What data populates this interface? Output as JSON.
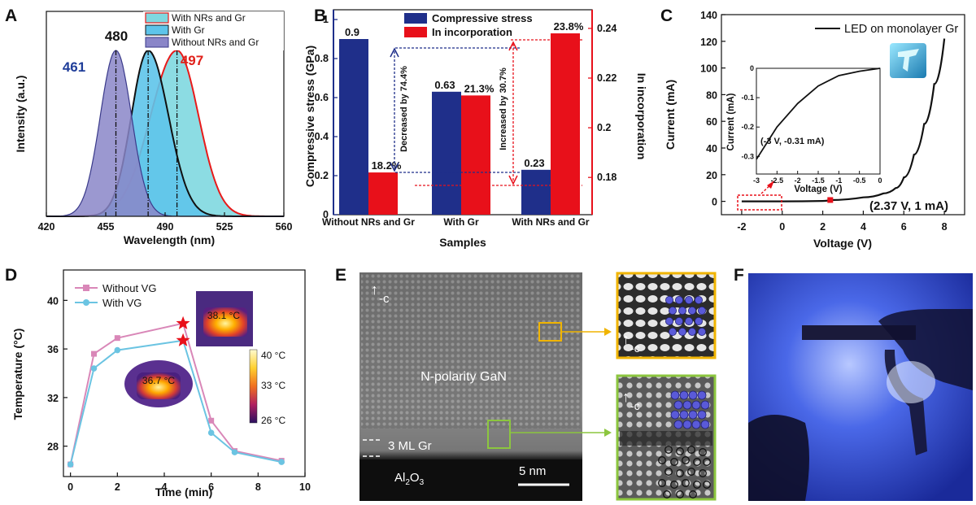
{
  "panels": {
    "a": "A",
    "b": "B",
    "c": "C",
    "d": "D",
    "e": "E",
    "f": "F"
  },
  "colors": {
    "navy": "#1f2f8a",
    "red": "#e8101a",
    "blue_peak": "#1f3d99",
    "red_peak": "#e0201a",
    "purple_fill": "#8a86c8",
    "cyan_fill": "#5ec4ea",
    "teal_fill": "#7fd8e0",
    "curve_red": "#e81a1a",
    "pink_line": "#d987b8",
    "cyan_line": "#6bc4e2"
  },
  "chart_data": [
    {
      "id": "A",
      "type": "line",
      "xlabel": "Wavelength (nm)",
      "ylabel": "Intensity (a.u.)",
      "xticks": [
        "420",
        "455",
        "490",
        "525",
        "560"
      ],
      "xlim": [
        420,
        560
      ],
      "legend": [
        "With NRs and Gr",
        "With Gr",
        "Without NRs and Gr"
      ],
      "peaks": [
        {
          "label": "461",
          "x": 461,
          "color": "#1f3d99"
        },
        {
          "label": "480",
          "x": 480,
          "color": "#111111"
        },
        {
          "label": "497",
          "x": 497,
          "color": "#e0201a"
        }
      ],
      "series": [
        {
          "name": "Without NRs and Gr",
          "peak": 461,
          "width_left": 13,
          "width_right": 13
        },
        {
          "name": "With Gr",
          "peak": 480,
          "width_left": 14,
          "width_right": 17
        },
        {
          "name": "With NRs and Gr",
          "peak": 497,
          "width_left": 22,
          "width_right": 18
        }
      ]
    },
    {
      "id": "B",
      "type": "bar",
      "xlabel": "Samples",
      "ylabel": "Compressive stress (GPa)",
      "ylabel2": "In incorporation",
      "categories": [
        "Without NRs and Gr",
        "With Gr",
        "With NRs and Gr"
      ],
      "ylim": [
        0,
        1.05
      ],
      "yticks": [
        "0",
        "0.2",
        "0.4",
        "0.6",
        "0.8",
        "1"
      ],
      "ylim2": [
        0.165,
        0.2475
      ],
      "yticks2": [
        "0.18",
        "0.2",
        "0.22",
        "0.24"
      ],
      "legend": [
        "Compressive stress",
        "In incorporation"
      ],
      "series": [
        {
          "name": "Compressive stress",
          "values": [
            0.9,
            0.63,
            0.23
          ],
          "labels": [
            "0.9",
            "0.63",
            "0.23"
          ]
        },
        {
          "name": "In incorporation",
          "values": [
            0.182,
            0.213,
            0.238
          ],
          "labels": [
            "18.2%",
            "21.3%",
            "23.8%"
          ]
        }
      ],
      "annotations": [
        "Decreased by 74.4%",
        "Increased by 30.7%"
      ]
    },
    {
      "id": "C",
      "type": "line",
      "xlabel": "Voltage (V)",
      "ylabel": "Current (mA)",
      "xticks": [
        "-2",
        "0",
        "2",
        "4",
        "6",
        "8"
      ],
      "xlim": [
        -3,
        9
      ],
      "yticks": [
        "0",
        "20",
        "40",
        "60",
        "80",
        "100",
        "120",
        "140"
      ],
      "ylim": [
        -10,
        140
      ],
      "legend": [
        "LED on monolayer Gr"
      ],
      "series": [
        {
          "name": "LED on monolayer Gr",
          "x": [
            -2,
            0,
            2,
            2.37,
            4,
            5,
            5.6,
            6,
            6.5,
            7,
            7.5,
            8
          ],
          "y": [
            0,
            0,
            0.3,
            1,
            3,
            6,
            10,
            18,
            35,
            58,
            88,
            122
          ]
        }
      ],
      "point_label": "(2.37 V, 1 mA)",
      "inset": {
        "xlabel": "Voltage (V)",
        "ylabel": "Current (mA)",
        "xticks": [
          "-3",
          "-2.5",
          "-2",
          "-1.5",
          "-1",
          "-0.5",
          "0"
        ],
        "yticks": [
          "0",
          "-0.1",
          "-0.2",
          "-0.3"
        ],
        "series": [
          {
            "x": [
              -3,
              -2.5,
              -2,
              -1.5,
              -1,
              -0.5,
              0
            ],
            "y": [
              -0.31,
              -0.2,
              -0.12,
              -0.06,
              -0.025,
              -0.01,
              0
            ]
          }
        ],
        "label": "(-3 V, -0.31 mA)"
      }
    },
    {
      "id": "D",
      "type": "line",
      "xlabel": "Time (min)",
      "ylabel": "Temperature (°C)",
      "xticks": [
        "0",
        "2",
        "4",
        "6",
        "8",
        "10"
      ],
      "xlim": [
        -0.3,
        10
      ],
      "yticks": [
        "28",
        "32",
        "36",
        "40"
      ],
      "ylim": [
        25.5,
        42.5
      ],
      "legend": [
        "Without VG",
        "With VG"
      ],
      "series": [
        {
          "name": "Without VG",
          "x": [
            0,
            1,
            2,
            4.8,
            6,
            7,
            9
          ],
          "y": [
            26.5,
            35.6,
            36.9,
            38.1,
            30.1,
            27.6,
            26.8
          ]
        },
        {
          "name": "With VG",
          "x": [
            0,
            1,
            2,
            4.8,
            6,
            7,
            9
          ],
          "y": [
            26.5,
            34.4,
            35.9,
            36.7,
            29.1,
            27.5,
            26.7
          ]
        }
      ],
      "thermal_labels": [
        "38.1 °C",
        "36.7 °C"
      ],
      "colorbar": [
        "40 °C",
        "33 °C",
        "26 °C"
      ]
    }
  ],
  "panel_e": {
    "polarity": "N-polarity GaN",
    "gr": "3 ML Gr",
    "substrate_main": "Al",
    "substrate_sub": "2",
    "substrate_tail": "O",
    "substrate_sub2": "3",
    "scale": "5 nm",
    "dir1": "-c",
    "dir2": "-c",
    "dir3": "-c"
  }
}
